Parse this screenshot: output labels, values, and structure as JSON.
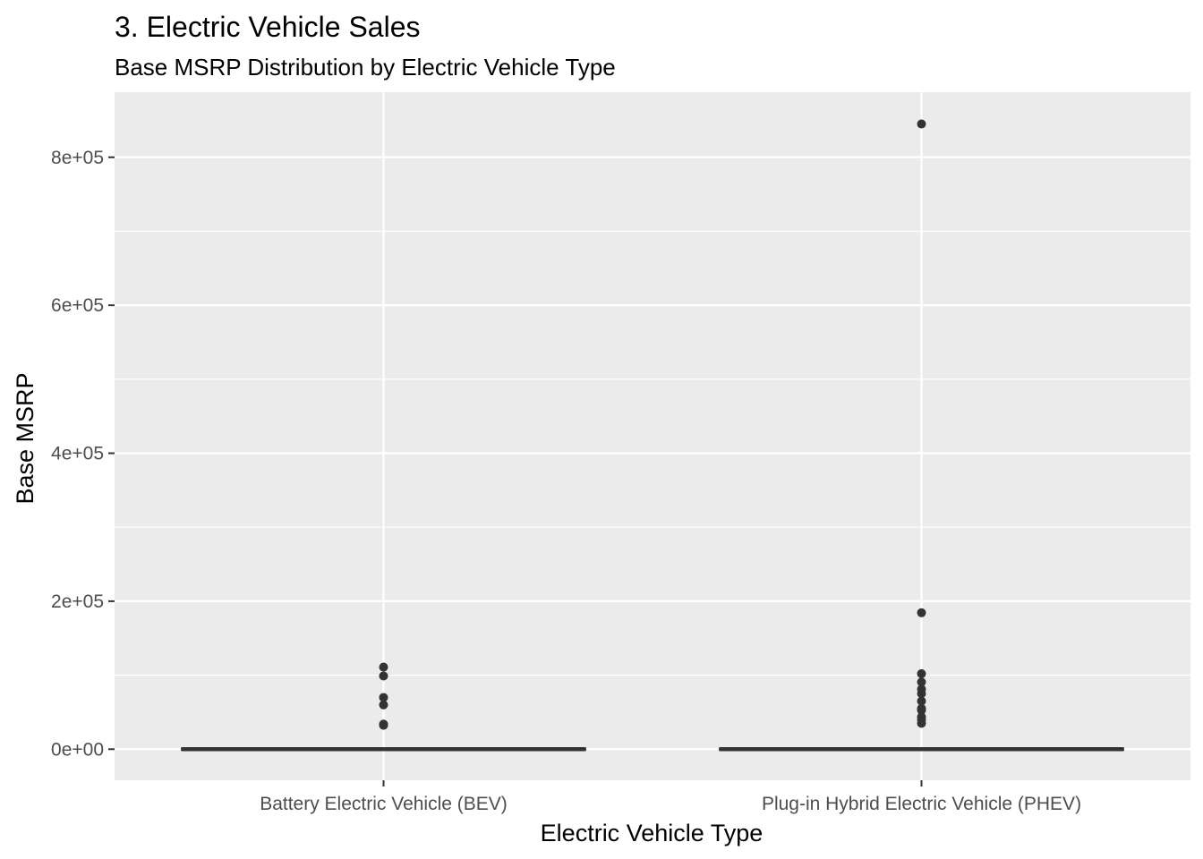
{
  "chart_data": {
    "type": "boxplot",
    "title": "3. Electric Vehicle Sales",
    "subtitle": "Base MSRP Distribution by Electric Vehicle Type",
    "xlabel": "Electric Vehicle Type",
    "ylabel": "Base MSRP",
    "categories": [
      "Battery Electric Vehicle (BEV)",
      "Plug-in Hybrid Electric Vehicle (PHEV)"
    ],
    "y_ticks": [
      0,
      200000,
      400000,
      600000,
      800000
    ],
    "y_tick_labels": [
      "0e+00",
      "2e+05",
      "4e+05",
      "6e+05",
      "8e+05"
    ],
    "ylim": [
      -42000,
      888000
    ],
    "grid": true,
    "boxes": [
      {
        "category": "Battery Electric Vehicle (BEV)",
        "min": 0,
        "q1": 0,
        "median": 0,
        "q3": 0,
        "max": 0,
        "outliers": [
          32250,
          33900,
          59900,
          69900,
          98950,
          110950
        ]
      },
      {
        "category": "Plug-in Hybrid Electric Vehicle (PHEV)",
        "min": 0,
        "q1": 0,
        "median": 0,
        "q3": 0,
        "max": 0,
        "outliers": [
          34995,
          39995,
          43700,
          52650,
          54950,
          64950,
          75095,
          81100,
          90700,
          102000,
          184400,
          845000
        ]
      }
    ],
    "colors": {
      "panel": "#ebebeb",
      "grid": "#ffffff",
      "box": "#333333",
      "outlier": "#333333",
      "tick": "#333333"
    }
  }
}
